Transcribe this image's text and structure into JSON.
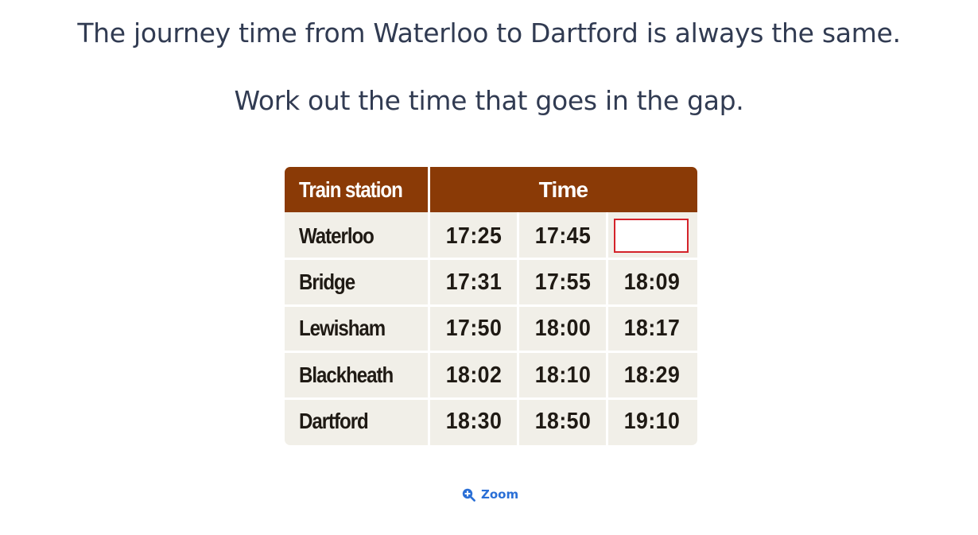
{
  "question": {
    "line1": "The journey time from Waterloo to Dartford is always the same.",
    "line2": "Work out the time that goes in the gap."
  },
  "table": {
    "header_station": "Train station",
    "header_time": "Time",
    "rows": [
      {
        "station": "Waterloo",
        "times": [
          "17:25",
          "17:45",
          ""
        ]
      },
      {
        "station": "Bridge",
        "times": [
          "17:31",
          "17:55",
          "18:09"
        ]
      },
      {
        "station": "Lewisham",
        "times": [
          "17:50",
          "18:00",
          "18:17"
        ]
      },
      {
        "station": "Blackheath",
        "times": [
          "18:02",
          "18:10",
          "18:29"
        ]
      },
      {
        "station": "Dartford",
        "times": [
          "18:30",
          "18:50",
          "19:10"
        ]
      }
    ],
    "colors": {
      "header": "#8a3a06",
      "body": "#f1efe8",
      "gap_border": "#d4232a"
    }
  },
  "zoom": {
    "label": "Zoom",
    "icon": "zoom-in-icon",
    "color": "#2a6fd6"
  }
}
